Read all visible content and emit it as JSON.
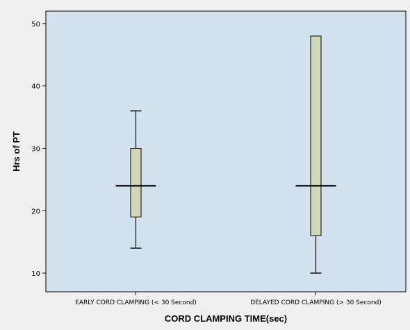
{
  "chart_data": {
    "type": "boxplot",
    "xlabel": "CORD CLAMPING TIME(sec)",
    "ylabel": "Hrs of PT",
    "ylim": [
      7,
      52
    ],
    "yticks": [
      10,
      20,
      30,
      40,
      50
    ],
    "grid": false,
    "categories": [
      "EARLY CORD CLAMPING  (< 30 Second)",
      "DELAYED CORD CLAMPING (> 30 Second)"
    ],
    "boxes": [
      {
        "category": "EARLY CORD CLAMPING  (< 30 Second)",
        "min": 14,
        "q1": 19,
        "median": 24,
        "q3": 30,
        "max": 36
      },
      {
        "category": "DELAYED CORD CLAMPING (> 30 Second)",
        "min": 10,
        "q1": 16,
        "median": 24,
        "q3": 48,
        "max": 48
      }
    ],
    "colors": {
      "plot_background": "#d4e2f0",
      "box_fill": "#d0d8b8",
      "page_background": "#f0f0f0"
    }
  }
}
